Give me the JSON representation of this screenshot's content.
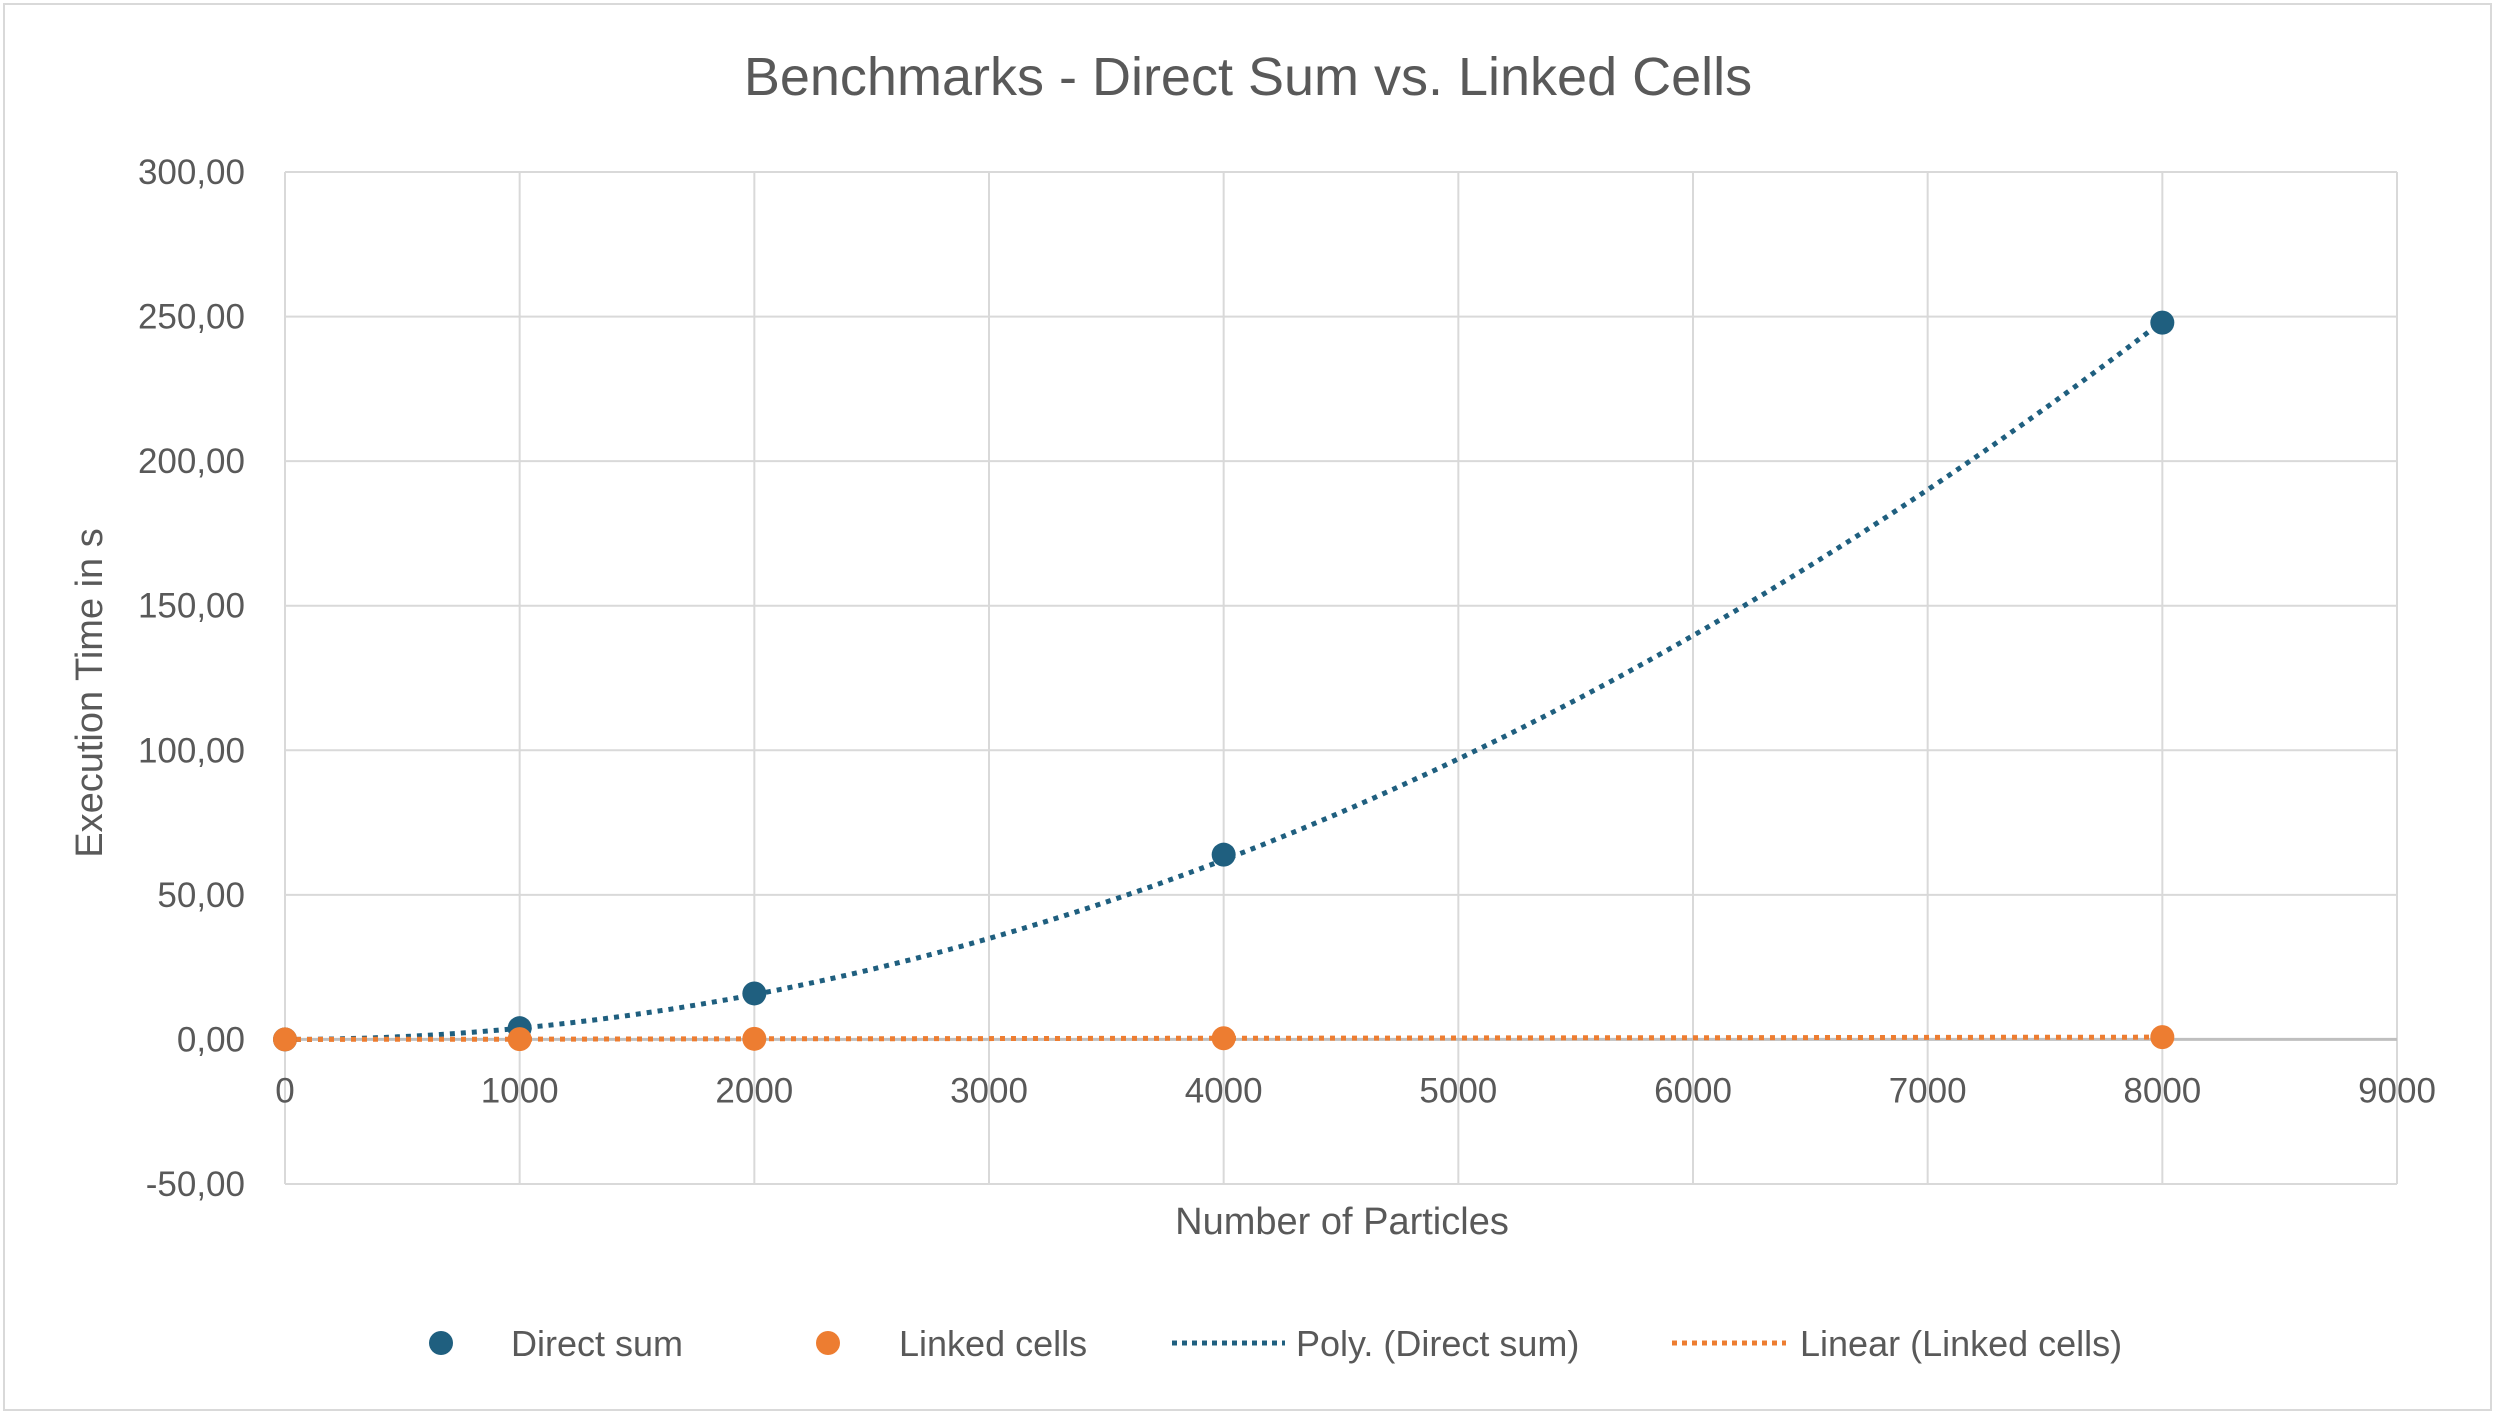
{
  "chart_data": {
    "type": "scatter",
    "title": "Benchmarks - Direct Sum vs. Linked Cells",
    "xlabel": "Number of Particles",
    "ylabel": "Execution Time in s",
    "xlim": [
      0,
      9000
    ],
    "ylim": [
      -50,
      300
    ],
    "x_ticks": [
      "0",
      "1000",
      "2000",
      "3000",
      "4000",
      "5000",
      "6000",
      "7000",
      "8000",
      "9000"
    ],
    "y_ticks": [
      "-50,00",
      "0,00",
      "50,00",
      "100,00",
      "150,00",
      "200,00",
      "250,00",
      "300,00"
    ],
    "x_tick_values": [
      0,
      1000,
      2000,
      3000,
      4000,
      5000,
      6000,
      7000,
      8000,
      9000
    ],
    "y_tick_values": [
      -50,
      0,
      50,
      100,
      150,
      200,
      250,
      300
    ],
    "grid": true,
    "legend_position": "bottom",
    "series": [
      {
        "name": "Direct sum",
        "color": "#1f5f7f",
        "x": [
          0,
          1000,
          2000,
          4000,
          8000
        ],
        "y": [
          0.0,
          3.9,
          15.9,
          63.9,
          247.9
        ]
      },
      {
        "name": "Linked cells",
        "color": "#ed7d31",
        "x": [
          0,
          1000,
          2000,
          4000,
          8000
        ],
        "y": [
          0.0,
          0.1,
          0.2,
          0.4,
          0.8
        ]
      }
    ],
    "trendlines": [
      {
        "name": "Poly. (Direct sum)",
        "color": "#1f5f7f",
        "kind": "polynomial",
        "coefficients": [
          0,
          0,
          3.88e-06
        ]
      },
      {
        "name": "Linear (Linked cells)",
        "color": "#ed7d31",
        "kind": "linear",
        "coefficients": [
          0,
          0.0001
        ]
      }
    ]
  }
}
